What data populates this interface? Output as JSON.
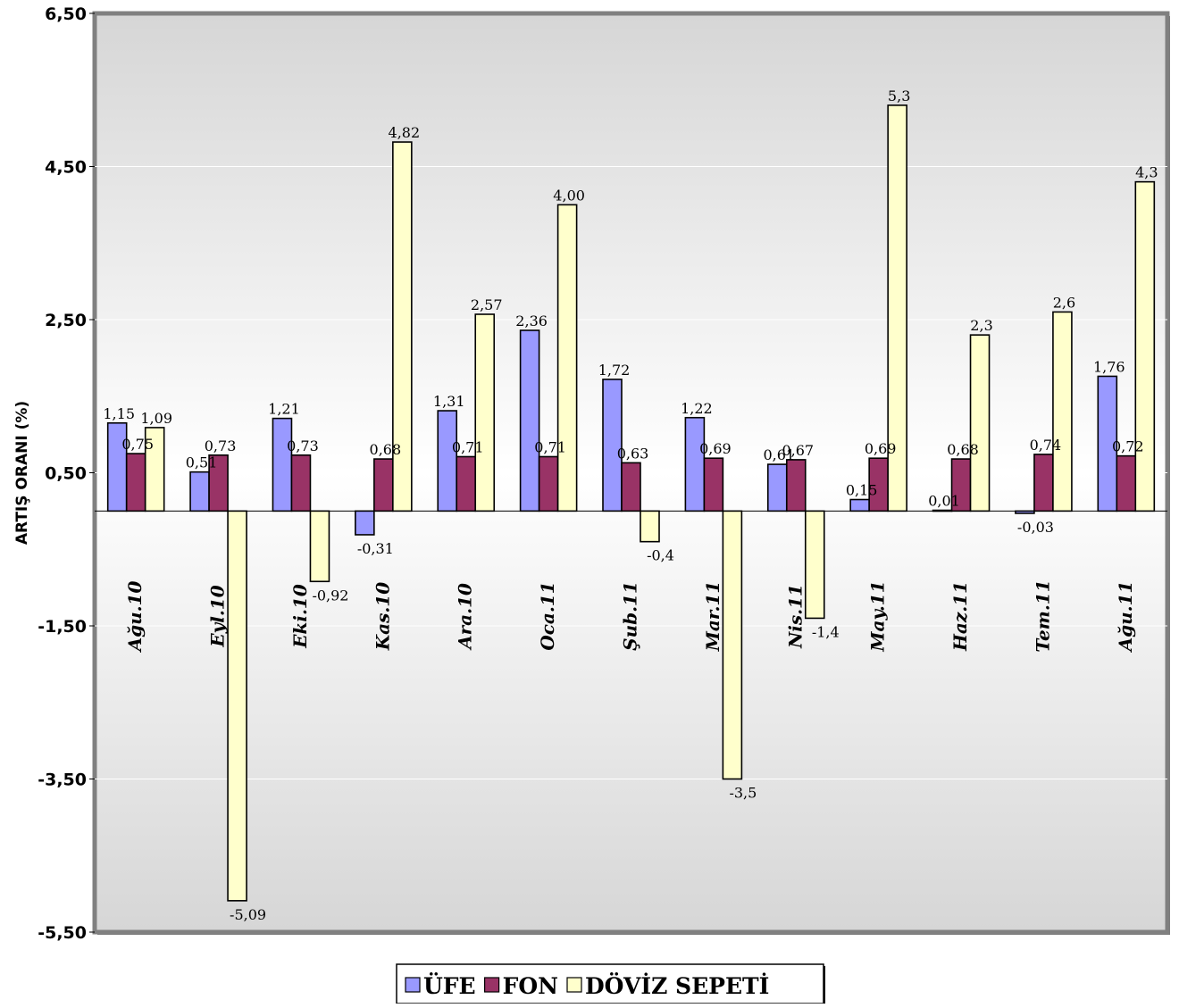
{
  "chart_data": {
    "type": "bar",
    "title": "",
    "xlabel": "",
    "ylabel": "ARTIŞ  ORANI (%)",
    "ylim": [
      -5.5,
      6.5
    ],
    "y_ticks": [
      "6,50",
      "4,50",
      "2,50",
      "0,50",
      "-1,50",
      "-3,50",
      "-5,50"
    ],
    "y_tick_values": [
      6.5,
      4.5,
      2.5,
      0.5,
      -1.5,
      -3.5,
      -5.5
    ],
    "grid": true,
    "legend_position": "bottom",
    "categories": [
      "Ağu.10",
      "Eyl.10",
      "Eki.10",
      "Kas.10",
      "Ara.10",
      "Oca.11",
      "Şub.11",
      "Mar.11",
      "Nis.11",
      "May.11",
      "Haz.11",
      "Tem.11",
      "Ağu.11"
    ],
    "series": [
      {
        "name": "ÜFE",
        "color": "#9999ff",
        "values": [
          1.15,
          0.51,
          1.21,
          -0.31,
          1.31,
          2.36,
          1.72,
          1.22,
          0.61,
          0.15,
          0.01,
          -0.03,
          1.76
        ],
        "labels": [
          "1,15",
          "0,51",
          "1,21",
          "-0,31",
          "1,31",
          "2,36",
          "1,72",
          "1,22",
          "0,61",
          "0,15",
          "0,01",
          "-0,03",
          "1,76"
        ]
      },
      {
        "name": "FON",
        "color": "#993366",
        "values": [
          0.75,
          0.73,
          0.73,
          0.68,
          0.71,
          0.71,
          0.63,
          0.69,
          0.67,
          0.69,
          0.68,
          0.74,
          0.72
        ],
        "labels": [
          "0,75",
          "0,73",
          "0,73",
          "0,68",
          "0,71",
          "0,71",
          "0,63",
          "0,69",
          "0,67",
          "0,69",
          "0,68",
          "0,74",
          "0,72"
        ]
      },
      {
        "name": "DÖVİZ SEPETİ",
        "color": "#ffffcc",
        "values": [
          1.09,
          -5.09,
          -0.92,
          4.82,
          2.57,
          4.0,
          -0.4,
          -3.5,
          -1.4,
          5.3,
          2.3,
          2.6,
          4.3
        ],
        "labels": [
          "1,09",
          "-5,09",
          "-0,92",
          "4,82",
          "2,57",
          "4,00",
          "-0,4",
          "-3,5",
          "-1,4",
          "5,3",
          "2,3",
          "2,6",
          "4,3"
        ]
      }
    ]
  }
}
